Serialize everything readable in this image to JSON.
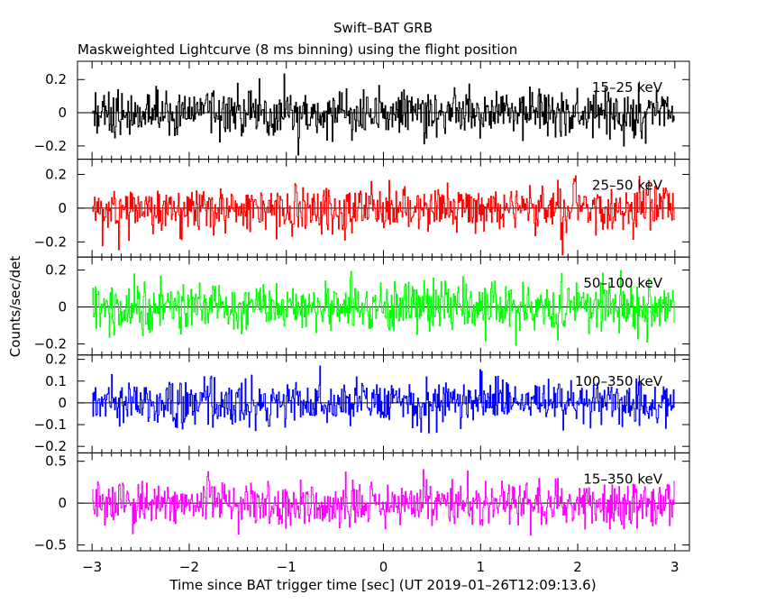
{
  "chart_data": {
    "type": "line",
    "title": "Swift–BAT GRB",
    "subtitle": "Maskweighted Lightcurve (8 ms binning) using the flight position",
    "xlabel": "Time since BAT trigger time [sec] (UT 2019–01–26T12:09:13.6)",
    "ylabel": "Counts/sec/det",
    "xlim": [
      -3.15,
      3.15
    ],
    "xticks": [
      -3,
      -2,
      -1,
      0,
      1,
      2,
      3
    ],
    "xtick_labels": [
      "−3",
      "−2",
      "−1",
      "0",
      "1",
      "2",
      "3"
    ],
    "bin_size_sec": 0.008,
    "grid": false,
    "panels": [
      {
        "name": "15–25 keV",
        "color": "#000000",
        "ylim": [
          -0.28,
          0.31
        ],
        "yticks": [
          0.2,
          0,
          -0.2
        ],
        "ytick_labels": [
          "0.2",
          "0",
          "−0.2"
        ],
        "noise_sigma": 0.075,
        "values": {
          "x": [
            -3,
            3
          ],
          "y": [
            0,
            0
          ]
        }
      },
      {
        "name": "25–50 keV",
        "color": "#ff0000",
        "ylim": [
          -0.29,
          0.29
        ],
        "yticks": [
          0.2,
          0,
          -0.2
        ],
        "ytick_labels": [
          "0.2",
          "0",
          "−0.2"
        ],
        "noise_sigma": 0.07,
        "values": {
          "x": [
            -3,
            3
          ],
          "y": [
            0,
            0
          ]
        }
      },
      {
        "name": "50–100 keV",
        "color": "#00ff00",
        "ylim": [
          -0.26,
          0.27
        ],
        "yticks": [
          0.2,
          0,
          -0.2
        ],
        "ytick_labels": [
          "0.2",
          "0",
          "−0.2"
        ],
        "noise_sigma": 0.068,
        "values": {
          "x": [
            -3,
            3
          ],
          "y": [
            0,
            0
          ]
        }
      },
      {
        "name": "100–350 keV",
        "color": "#0000ff",
        "ylim": [
          -0.23,
          0.22
        ],
        "yticks": [
          0.2,
          0.1,
          0,
          -0.1,
          -0.2
        ],
        "ytick_labels": [
          "0.2",
          "0.1",
          "0",
          "−0.1",
          "−0.2"
        ],
        "noise_sigma": 0.05,
        "values": {
          "x": [
            -3,
            3
          ],
          "y": [
            0,
            0
          ]
        }
      },
      {
        "name": "15–350 keV",
        "color": "#ff00ff",
        "ylim": [
          -0.57,
          0.6
        ],
        "yticks": [
          0.5,
          0,
          -0.5
        ],
        "ytick_labels": [
          "0.5",
          "0",
          "−0.5"
        ],
        "noise_sigma": 0.14,
        "values": {
          "x": [
            -3,
            3
          ],
          "y": [
            0,
            0
          ]
        }
      }
    ]
  }
}
